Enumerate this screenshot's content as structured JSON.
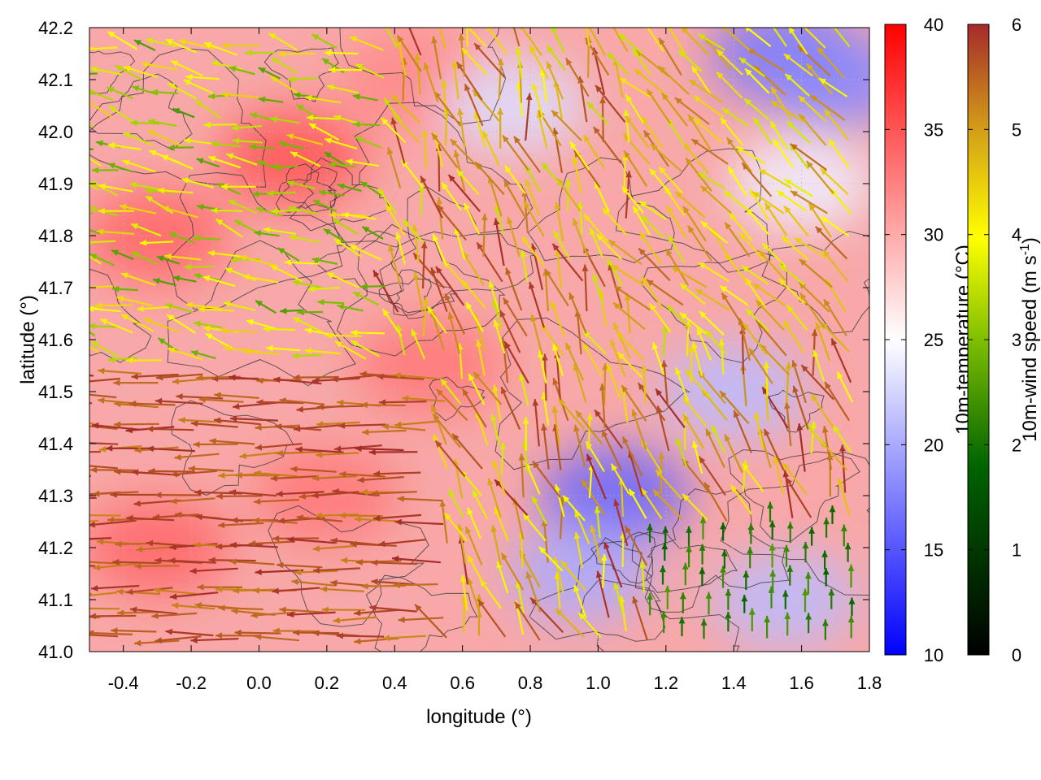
{
  "chart_data": {
    "type": "vector-field-map",
    "xlabel": "longitude (°)",
    "ylabel": "latitude (°)",
    "xlim": [
      -0.5,
      1.8
    ],
    "ylim": [
      41.0,
      42.2
    ],
    "xticks": [
      -0.4,
      -0.2,
      0.0,
      0.2,
      0.4,
      0.6,
      0.8,
      1.0,
      1.2,
      1.4,
      1.6,
      1.8
    ],
    "xtick_labels": [
      "-0.4",
      "-0.2",
      "0.0",
      "0.2",
      "0.4",
      "0.6",
      "0.8",
      "1.0",
      "1.2",
      "1.4",
      "1.6",
      "1.8"
    ],
    "yticks": [
      41.0,
      41.1,
      41.2,
      41.3,
      41.4,
      41.5,
      41.6,
      41.7,
      41.8,
      41.9,
      42.0,
      42.1,
      42.2
    ],
    "ytick_labels": [
      "41.0",
      "41.1",
      "41.2",
      "41.3",
      "41.4",
      "41.5",
      "41.6",
      "41.7",
      "41.8",
      "41.9",
      "42.0",
      "42.1",
      "42.2"
    ],
    "temperature_colorbar": {
      "label": "10m-temperature (°C)",
      "range": [
        10,
        40
      ],
      "ticks": [
        "10",
        "15",
        "20",
        "25",
        "30",
        "35",
        "40"
      ],
      "colors": [
        "#0000ff",
        "#ffffff",
        "#ff0000"
      ]
    },
    "wind_colorbar": {
      "label": "10m-wind speed (m s",
      "label_sup": "-1",
      "label_end": ")",
      "range": [
        0,
        6
      ],
      "ticks": [
        "0",
        "1",
        "2",
        "3",
        "4",
        "5",
        "6"
      ],
      "colors": [
        "#000000",
        "#006400",
        "#7fbf00",
        "#ffff00",
        "#d4a017",
        "#a52a2a"
      ]
    },
    "cool_regions": [
      {
        "lon": 1.05,
        "lat": 41.3,
        "temp": 16
      },
      {
        "lon": 0.95,
        "lat": 41.15,
        "temp": 20
      },
      {
        "lon": 1.55,
        "lat": 41.1,
        "temp": 21
      },
      {
        "lon": 1.4,
        "lat": 41.5,
        "temp": 21
      },
      {
        "lon": 1.55,
        "lat": 42.15,
        "temp": 17
      },
      {
        "lon": 1.7,
        "lat": 42.1,
        "temp": 18
      },
      {
        "lon": 0.75,
        "lat": 42.05,
        "temp": 23
      },
      {
        "lon": 1.6,
        "lat": 41.9,
        "temp": 24
      }
    ],
    "warm_regions": [
      {
        "lon": -0.3,
        "lat": 41.8,
        "temp": 34
      },
      {
        "lon": 0.1,
        "lat": 41.95,
        "temp": 35
      },
      {
        "lon": 0.5,
        "lat": 41.55,
        "temp": 33
      },
      {
        "lon": -0.3,
        "lat": 41.2,
        "temp": 34
      },
      {
        "lon": 0.2,
        "lat": 41.3,
        "temp": 33
      },
      {
        "lon": 0.45,
        "lat": 42.1,
        "temp": 32
      }
    ],
    "wind_regimes": [
      {
        "region": "south-west",
        "direction": "west",
        "speed": 5.8
      },
      {
        "region": "north-west",
        "direction": "west-north-west",
        "speed": 3.5
      },
      {
        "region": "centre",
        "direction": "north-north-west",
        "speed": 5.5
      },
      {
        "region": "south-east",
        "direction": "north",
        "speed": 2.2
      },
      {
        "region": "north-east",
        "direction": "north-west",
        "speed": 4.5
      }
    ]
  }
}
